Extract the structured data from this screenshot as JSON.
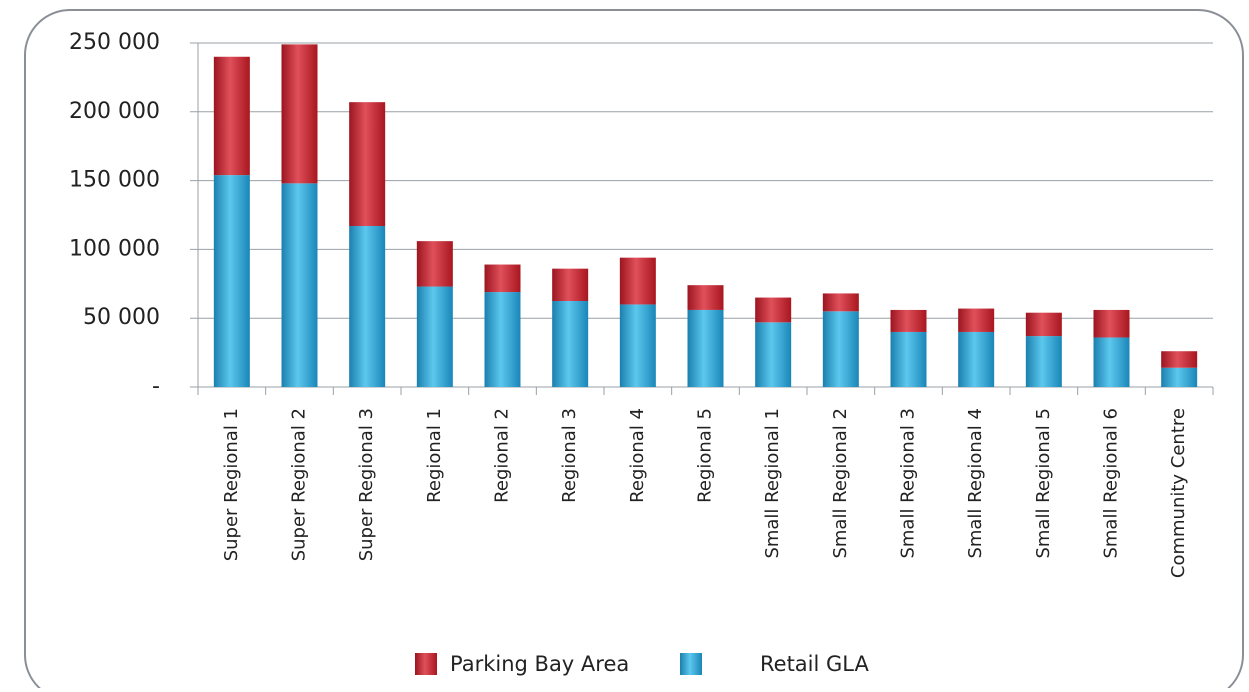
{
  "chart_data": {
    "type": "stacked_bar",
    "categories": [
      "Super Regional 1",
      "Super Regional 2",
      "Super Regional 3",
      "Regional 1",
      "Regional 2",
      "Regional 3",
      "Regional 4",
      "Regional 5",
      "Small Regional 1",
      "Small Regional 2",
      "Small Regional 3",
      "Small Regional 4",
      "Small Regional 5",
      "Small Regional 6",
      "Community Centre"
    ],
    "series": [
      {
        "name": "Retail GLA",
        "color": "#2aa5d5",
        "values": [
          154000,
          148000,
          117000,
          73000,
          69000,
          62500,
          60000,
          56000,
          47000,
          55000,
          40000,
          40000,
          37000,
          36000,
          14000
        ]
      },
      {
        "name": "Parking Bay Area",
        "color": "#c8202e",
        "values": [
          86000,
          101000,
          90000,
          33000,
          20000,
          23500,
          34000,
          18000,
          18000,
          13000,
          16000,
          17000,
          17000,
          20000,
          12000
        ]
      }
    ],
    "ylim": [
      0,
      250000
    ],
    "yticks": [
      {
        "value": 0,
        "label": "-"
      },
      {
        "value": 50000,
        "label": "50 000"
      },
      {
        "value": 100000,
        "label": "100 000"
      },
      {
        "value": 150000,
        "label": "150 000"
      },
      {
        "value": 200000,
        "label": "200 000"
      },
      {
        "value": 250000,
        "label": "250 000"
      }
    ],
    "grid": true
  }
}
